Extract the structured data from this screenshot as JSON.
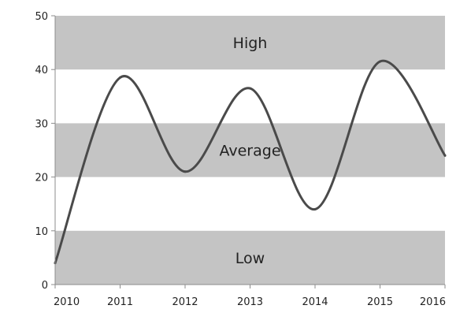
{
  "chart_data": {
    "type": "line",
    "style": "spline",
    "x_is_continuous": true,
    "x": [
      2010.0,
      2011.0,
      2012.0,
      2013.0,
      2014.0,
      2015.0,
      2016.0
    ],
    "series": [
      {
        "values": [
          4,
          38.5,
          21,
          36.5,
          14,
          41.5,
          24
        ],
        "color": "#4a4a4a"
      }
    ],
    "xlim": [
      2010,
      2016
    ],
    "ylim": [
      0,
      50
    ],
    "xticks": [
      "2010",
      "2011",
      "2012",
      "2013",
      "2014",
      "2015",
      "2016"
    ],
    "yticks": [
      "0",
      "10",
      "20",
      "30",
      "40",
      "50"
    ],
    "bands": [
      {
        "label": "High",
        "from": 40,
        "to": 50,
        "color": "#c4c4c4"
      },
      {
        "label": "Average",
        "from": 20,
        "to": 30,
        "color": "#c4c4c4"
      },
      {
        "label": "Low",
        "from": 0,
        "to": 10,
        "color": "#c4c4c4"
      }
    ],
    "grid": false,
    "legend": "none"
  }
}
